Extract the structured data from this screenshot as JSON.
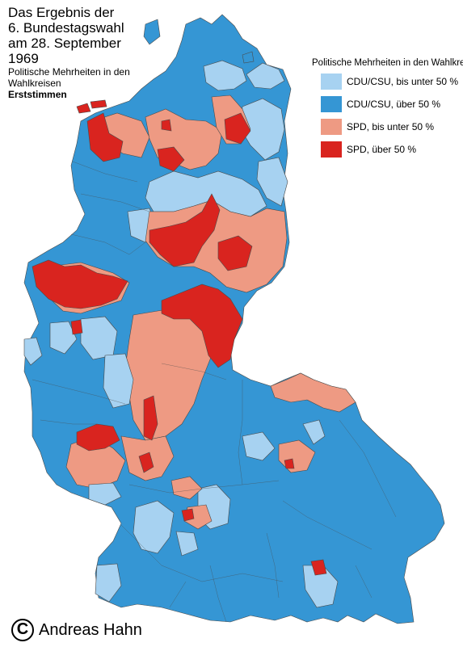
{
  "title_lines": [
    "Das Ergebnis der",
    "6. Bundestagswahl",
    "am 28. September",
    "1969"
  ],
  "subtitle_lines": [
    "Politische Mehrheiten in den",
    "Wahlkreisen"
  ],
  "subtitle_bold": "Erststimmen",
  "legend": {
    "title": "Politische Mehrheiten in den Wahlkreisen",
    "items": [
      {
        "label": "CDU/CSU, bis unter 50 %",
        "color": "#a7d2f1"
      },
      {
        "label": "CDU/CSU, über 50 %",
        "color": "#3596d4"
      },
      {
        "label": "SPD, bis unter 50 %",
        "color": "#ee9a83"
      },
      {
        "label": "SPD, über 50 %",
        "color": "#d9241f"
      }
    ]
  },
  "copyright": {
    "symbol": "C",
    "text": "Andreas Hahn"
  },
  "colors": {
    "cdu_light": "#a7d2f1",
    "cdu_dark": "#3596d4",
    "spd_light": "#ee9a83",
    "spd_dark": "#d9241f",
    "border": "#4a4a4a"
  }
}
